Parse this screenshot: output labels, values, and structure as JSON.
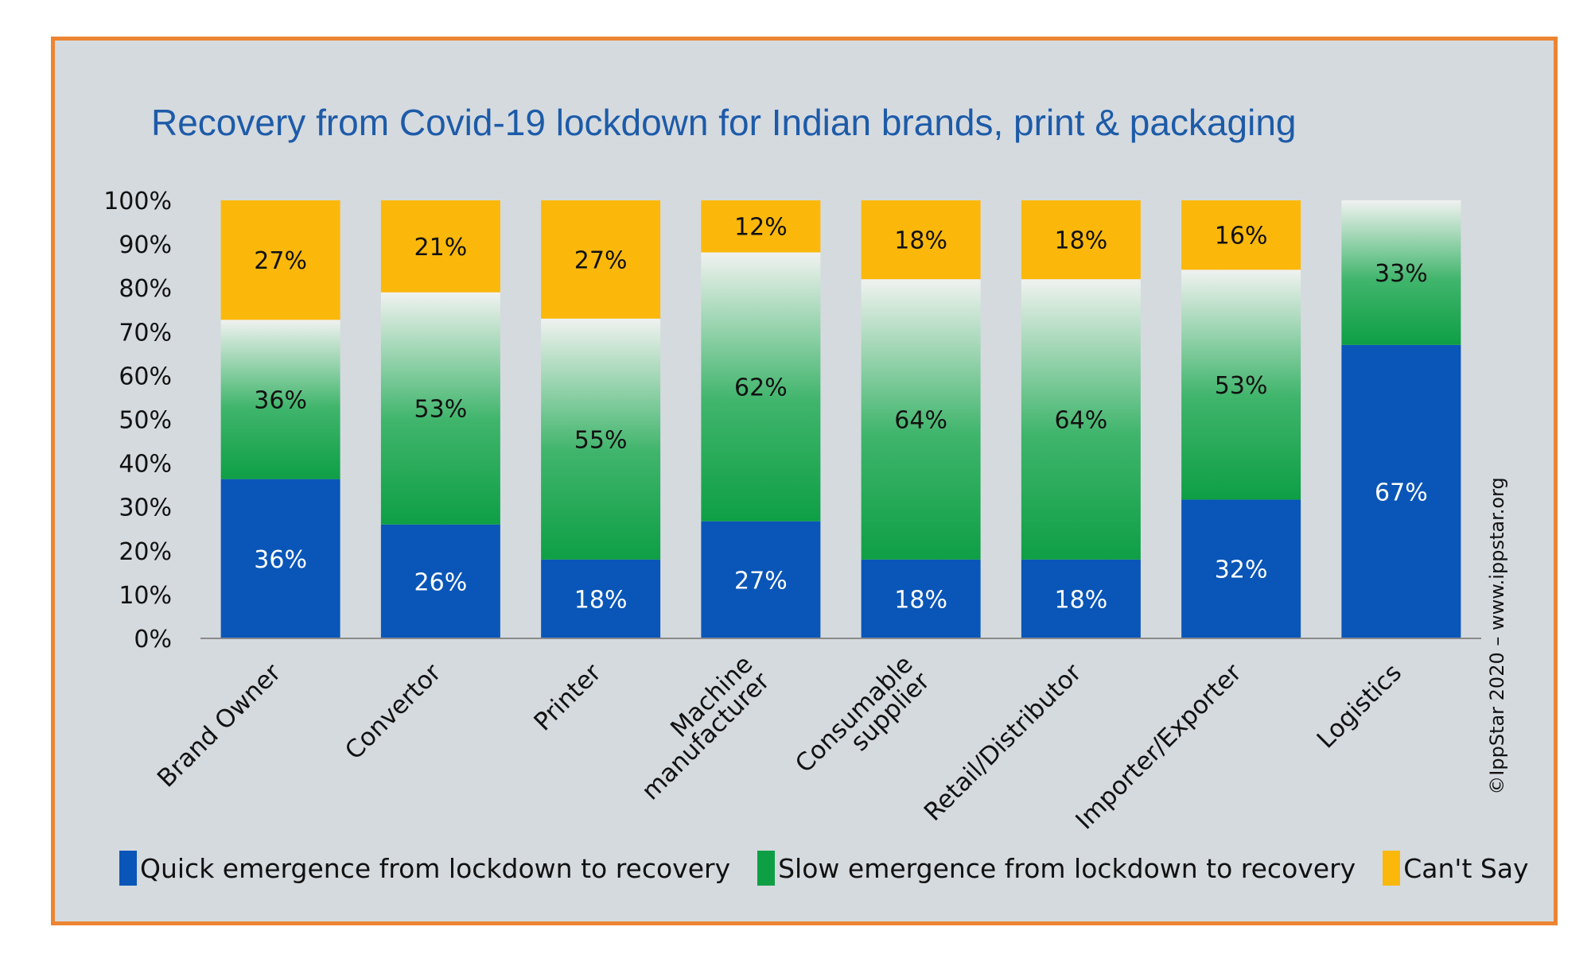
{
  "chart_data": {
    "type": "bar",
    "stacked": true,
    "title": "Recovery from Covid-19 lockdown for Indian brands, print & packaging",
    "categories": [
      [
        "Brand Owner"
      ],
      [
        "Convertor"
      ],
      [
        "Printer"
      ],
      [
        "Machine",
        "manufacturer"
      ],
      [
        "Consumable",
        "supplier"
      ],
      [
        "Retail/Distributor"
      ],
      [
        "Importer/Exporter"
      ],
      [
        "Logistics"
      ]
    ],
    "series": [
      {
        "name": "Quick emergence from lockdown to recovery",
        "color": "#0a56b8",
        "values": [
          36,
          26,
          18,
          27,
          18,
          18,
          32,
          67
        ],
        "labels": [
          "36%",
          "26%",
          "18%",
          "27%",
          "18%",
          "18%",
          "32%",
          "67%"
        ]
      },
      {
        "name": "Slow emergence from lockdown to recovery",
        "color": "#0e9f45",
        "values": [
          36,
          53,
          55,
          62,
          64,
          64,
          53,
          33
        ],
        "labels": [
          "36%",
          "53%",
          "55%",
          "62%",
          "64%",
          "64%",
          "53%",
          "33%"
        ]
      },
      {
        "name": "Can't Say",
        "color": "#fbb80b",
        "values": [
          27,
          21,
          27,
          12,
          18,
          18,
          16,
          0
        ],
        "labels": [
          "27%",
          "21%",
          "27%",
          "12%",
          "18%",
          "18%",
          "16%",
          ""
        ]
      }
    ],
    "yticks": [
      "0%",
      "10%",
      "20%",
      "30%",
      "40%",
      "50%",
      "60%",
      "70%",
      "80%",
      "90%",
      "100%"
    ],
    "ylim": [
      0,
      100
    ],
    "legend_position": "bottom",
    "grid": false,
    "watermark": "©IppStar 2020 – www.ippstar.org"
  }
}
